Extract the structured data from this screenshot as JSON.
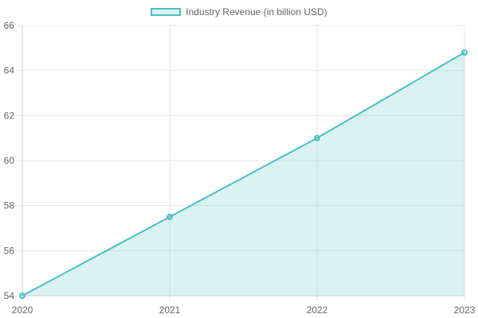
{
  "chart_data": {
    "type": "area",
    "title": "",
    "categories": [
      "2020",
      "2021",
      "2022",
      "2023"
    ],
    "series": [
      {
        "name": "Industry Revenue (in billion USD)",
        "values": [
          54,
          57.5,
          61,
          64.8
        ],
        "color": "#4bc0c0",
        "fill": "rgba(75,192,192,0.2)"
      }
    ],
    "xlabel": "",
    "ylabel": "",
    "ylim": [
      54,
      66
    ],
    "yticks": [
      "66",
      "64",
      "62",
      "60",
      "58",
      "56",
      "54"
    ],
    "grid": true,
    "legend_position": "top"
  },
  "legend": {
    "label": "Industry Revenue (in billion USD)"
  }
}
